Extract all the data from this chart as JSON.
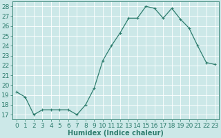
{
  "x": [
    0,
    1,
    2,
    3,
    4,
    5,
    6,
    7,
    8,
    9,
    10,
    11,
    12,
    13,
    14,
    15,
    16,
    17,
    18,
    19,
    20,
    21,
    22,
    23
  ],
  "y": [
    19.3,
    18.8,
    17.0,
    17.5,
    17.5,
    17.5,
    17.5,
    17.0,
    18.0,
    19.7,
    22.5,
    24.0,
    25.3,
    26.8,
    26.8,
    28.0,
    27.8,
    26.8,
    27.8,
    26.7,
    25.8,
    24.0,
    22.3,
    22.1
  ],
  "line_color": "#2e7d6e",
  "marker": "+",
  "marker_size": 3,
  "marker_lw": 0.8,
  "line_width": 0.9,
  "bg_color": "#cce8e8",
  "grid_color": "#ffffff",
  "xlabel": "Humidex (Indice chaleur)",
  "ylim": [
    16.5,
    28.5
  ],
  "xlim": [
    -0.5,
    23.5
  ],
  "yticks": [
    17,
    18,
    19,
    20,
    21,
    22,
    23,
    24,
    25,
    26,
    27,
    28
  ],
  "xticks": [
    0,
    1,
    2,
    3,
    4,
    5,
    6,
    7,
    8,
    9,
    10,
    11,
    12,
    13,
    14,
    15,
    16,
    17,
    18,
    19,
    20,
    21,
    22,
    23
  ],
  "xlabel_fontsize": 7,
  "tick_fontsize": 6.5,
  "spine_color": "#2e7d6e"
}
